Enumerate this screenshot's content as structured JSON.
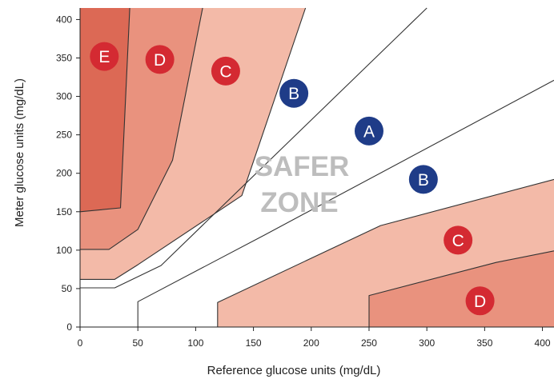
{
  "chart_data": {
    "type": "area",
    "title": "",
    "xlabel": "Reference glucose units (mg/dL)",
    "ylabel": "Meter glucose units (mg/dL)",
    "xlim": [
      0,
      410
    ],
    "ylim": [
      0,
      415
    ],
    "x_ticks": [
      "0",
      "50",
      "100",
      "150",
      "200",
      "250",
      "300",
      "350",
      "400"
    ],
    "y_ticks": [
      "0",
      "50",
      "100",
      "150",
      "200",
      "250",
      "300",
      "350",
      "400"
    ],
    "center_text": [
      "SAFER",
      "ZONE"
    ],
    "zones": [
      {
        "label": "E",
        "fill": "#dc6955",
        "points": [
          [
            0,
            415
          ],
          [
            43,
            415
          ],
          [
            35,
            155
          ],
          [
            0,
            150
          ]
        ]
      },
      {
        "label": "D",
        "fill": "#e9927e",
        "points": [
          [
            43,
            415
          ],
          [
            106,
            415
          ],
          [
            80,
            217
          ],
          [
            50,
            127
          ],
          [
            25,
            101
          ],
          [
            0,
            101
          ],
          [
            0,
            150
          ],
          [
            35,
            155
          ]
        ]
      },
      {
        "label": "C",
        "fill": "#f3baa8",
        "points": [
          [
            106,
            415
          ],
          [
            195,
            415
          ],
          [
            140,
            171
          ],
          [
            50,
            81
          ],
          [
            30,
            62
          ],
          [
            0,
            62
          ],
          [
            0,
            101
          ],
          [
            25,
            101
          ],
          [
            50,
            127
          ],
          [
            80,
            217
          ]
        ]
      },
      {
        "label": "C",
        "fill": "#f3baa8",
        "points": [
          [
            119,
            0
          ],
          [
            410,
            0
          ],
          [
            410,
            192
          ],
          [
            260,
            132
          ],
          [
            119,
            32
          ]
        ]
      },
      {
        "label": "D",
        "fill": "#e9927e",
        "points": [
          [
            250,
            0
          ],
          [
            410,
            0
          ],
          [
            410,
            99
          ],
          [
            360,
            84
          ],
          [
            250,
            41
          ]
        ]
      }
    ],
    "lines": [
      {
        "points": [
          [
            0,
            51
          ],
          [
            30,
            51
          ],
          [
            70,
            80
          ],
          [
            300,
            415
          ]
        ]
      },
      {
        "points": [
          [
            0,
            62
          ],
          [
            30,
            62
          ],
          [
            50,
            81
          ],
          [
            140,
            171
          ],
          [
            195,
            415
          ]
        ]
      },
      {
        "points": [
          [
            0,
            101
          ],
          [
            25,
            101
          ],
          [
            50,
            127
          ],
          [
            80,
            217
          ],
          [
            106,
            415
          ]
        ]
      },
      {
        "points": [
          [
            0,
            150
          ],
          [
            35,
            155
          ],
          [
            43,
            415
          ]
        ]
      },
      {
        "points": [
          [
            50,
            0
          ],
          [
            50,
            33
          ],
          [
            160,
            120
          ],
          [
            410,
            321
          ]
        ]
      },
      {
        "points": [
          [
            119,
            0
          ],
          [
            119,
            32
          ],
          [
            260,
            132
          ],
          [
            410,
            192
          ]
        ]
      },
      {
        "points": [
          [
            250,
            0
          ],
          [
            250,
            41
          ],
          [
            360,
            84
          ],
          [
            410,
            99
          ]
        ]
      }
    ],
    "labels": [
      {
        "text": "E",
        "x": 21,
        "y": 352,
        "color": "#d42a32"
      },
      {
        "text": "D",
        "x": 69,
        "y": 348,
        "color": "#d42a32"
      },
      {
        "text": "C",
        "x": 126,
        "y": 333,
        "color": "#d42a32"
      },
      {
        "text": "B",
        "x": 185,
        "y": 304,
        "color": "#1f3c88"
      },
      {
        "text": "A",
        "x": 250,
        "y": 255,
        "color": "#1f3c88"
      },
      {
        "text": "B",
        "x": 297,
        "y": 192,
        "color": "#1f3c88"
      },
      {
        "text": "C",
        "x": 327,
        "y": 113,
        "color": "#d42a32"
      },
      {
        "text": "D",
        "x": 346,
        "y": 34,
        "color": "#d42a32"
      }
    ]
  }
}
